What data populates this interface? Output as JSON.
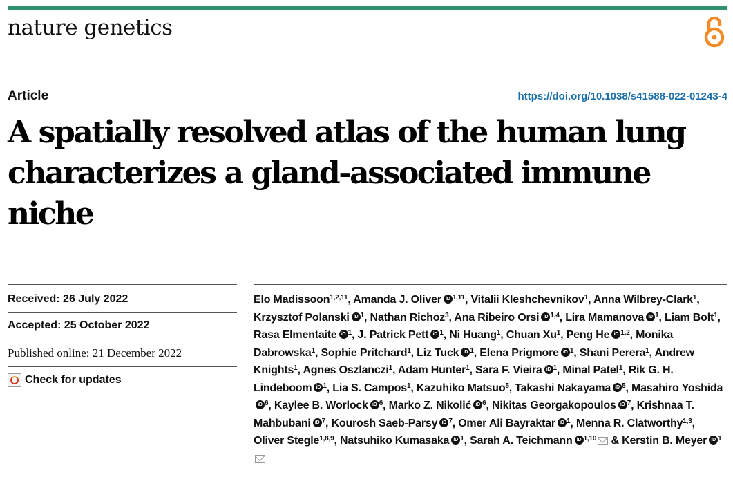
{
  "journal": "nature genetics",
  "article_type": "Article",
  "doi": "https://doi.org/10.1038/s41588-022-01243-4",
  "title": "A spatially resolved atlas of the human lung characterizes a gland-associated immune niche",
  "dates": {
    "received": "Received: 26 July 2022",
    "accepted": "Accepted: 25 October 2022",
    "published": "Published online: 21 December 2022"
  },
  "check_updates": "Check for updates",
  "authors": [
    {
      "name": "Elo Madissoon",
      "aff": "1,2,11",
      "orcid": false
    },
    {
      "name": "Amanda J. Oliver",
      "aff": "1,11",
      "orcid": true
    },
    {
      "name": "Vitalii Kleshchevnikov",
      "aff": "1",
      "orcid": false
    },
    {
      "name": "Anna Wilbrey-Clark",
      "aff": "1",
      "orcid": false
    },
    {
      "name": "Krzysztof Polanski",
      "aff": "1",
      "orcid": true
    },
    {
      "name": "Nathan Richoz",
      "aff": "3",
      "orcid": false
    },
    {
      "name": "Ana Ribeiro Orsi",
      "aff": "1,4",
      "orcid": true
    },
    {
      "name": "Lira Mamanova",
      "aff": "1",
      "orcid": true
    },
    {
      "name": "Liam Bolt",
      "aff": "1",
      "orcid": false
    },
    {
      "name": "Rasa Elmentaite",
      "aff": "1",
      "orcid": true
    },
    {
      "name": "J. Patrick Pett",
      "aff": "1",
      "orcid": true
    },
    {
      "name": "Ni Huang",
      "aff": "1",
      "orcid": false
    },
    {
      "name": "Chuan Xu",
      "aff": "1",
      "orcid": false
    },
    {
      "name": "Peng He",
      "aff": "1,2",
      "orcid": true
    },
    {
      "name": "Monika Dabrowska",
      "aff": "1",
      "orcid": false
    },
    {
      "name": "Sophie Pritchard",
      "aff": "1",
      "orcid": false
    },
    {
      "name": "Liz Tuck",
      "aff": "1",
      "orcid": true
    },
    {
      "name": "Elena Prigmore",
      "aff": "1",
      "orcid": true
    },
    {
      "name": "Shani Perera",
      "aff": "1",
      "orcid": false
    },
    {
      "name": "Andrew Knights",
      "aff": "1",
      "orcid": false
    },
    {
      "name": "Agnes Oszlanczi",
      "aff": "1",
      "orcid": false
    },
    {
      "name": "Adam Hunter",
      "aff": "1",
      "orcid": false
    },
    {
      "name": "Sara F. Vieira",
      "aff": "1",
      "orcid": true
    },
    {
      "name": "Minal Patel",
      "aff": "1",
      "orcid": false
    },
    {
      "name": "Rik G. H. Lindeboom",
      "aff": "1",
      "orcid": true
    },
    {
      "name": "Lia S. Campos",
      "aff": "1",
      "orcid": false
    },
    {
      "name": "Kazuhiko Matsuo",
      "aff": "5",
      "orcid": false
    },
    {
      "name": "Takashi Nakayama",
      "aff": "5",
      "orcid": true
    },
    {
      "name": "Masahiro Yoshida",
      "aff": "6",
      "orcid": true
    },
    {
      "name": "Kaylee B. Worlock",
      "aff": "6",
      "orcid": true
    },
    {
      "name": "Marko Z. Nikolić",
      "aff": "6",
      "orcid": true
    },
    {
      "name": "Nikitas Georgakopoulos",
      "aff": "7",
      "orcid": true
    },
    {
      "name": "Krishnaa T. Mahbubani",
      "aff": "7",
      "orcid": true
    },
    {
      "name": "Kourosh Saeb-Parsy",
      "aff": "7",
      "orcid": true
    },
    {
      "name": "Omer Ali Bayraktar",
      "aff": "1",
      "orcid": true
    },
    {
      "name": "Menna R. Clatworthy",
      "aff": "1,3",
      "orcid": false
    },
    {
      "name": "Oliver Stegle",
      "aff": "1,8,9",
      "orcid": false
    },
    {
      "name": "Natsuhiko Kumasaka",
      "aff": "1",
      "orcid": true
    },
    {
      "name": "Sarah A. Teichmann",
      "aff": "1,10",
      "orcid": true,
      "mail": true
    },
    {
      "name": "Kerstin B. Meyer",
      "aff": "1",
      "orcid": true,
      "mail": true,
      "prefix": "& "
    }
  ],
  "colors": {
    "topbar": "#2f8f6f",
    "doi": "#1a6fa8",
    "open_access": "#f28c28"
  }
}
